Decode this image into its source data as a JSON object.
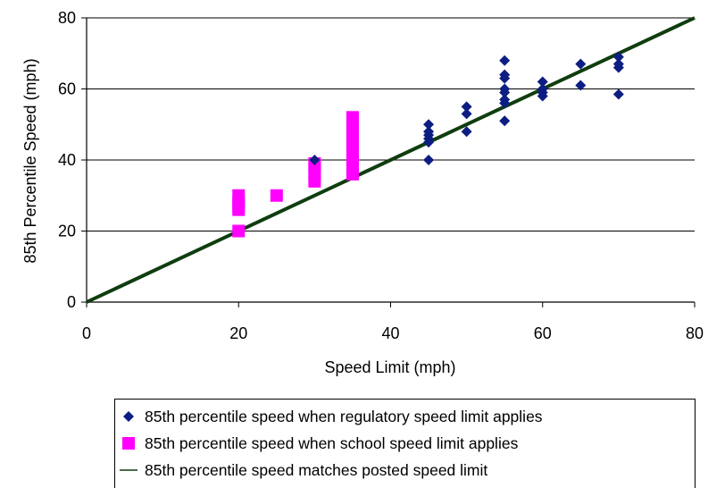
{
  "chart_data": {
    "type": "scatter",
    "xlabel": "Speed Limit (mph)",
    "ylabel": "85th Percentile Speed (mph)",
    "xlim": [
      0,
      80
    ],
    "ylim": [
      0,
      80
    ],
    "xticks": [
      0,
      20,
      40,
      60,
      80
    ],
    "yticks": [
      0,
      20,
      40,
      60,
      80
    ],
    "grid": "horizontal",
    "legend_position": "bottom",
    "series": [
      {
        "name": "85th percentile speed when regulatory speed limit applies",
        "marker": "diamond",
        "color": "#0d1e82",
        "points": [
          [
            30,
            40
          ],
          [
            45,
            40
          ],
          [
            45,
            45
          ],
          [
            45,
            46
          ],
          [
            45,
            47
          ],
          [
            45,
            48
          ],
          [
            45,
            50
          ],
          [
            50,
            48
          ],
          [
            50,
            53
          ],
          [
            50,
            55
          ],
          [
            55,
            51
          ],
          [
            55,
            56
          ],
          [
            55,
            57
          ],
          [
            55,
            59
          ],
          [
            55,
            60
          ],
          [
            55,
            63
          ],
          [
            55,
            64
          ],
          [
            55,
            68
          ],
          [
            60,
            58
          ],
          [
            60,
            59
          ],
          [
            60,
            60
          ],
          [
            60,
            62
          ],
          [
            65,
            61
          ],
          [
            65,
            67
          ],
          [
            70,
            58.5
          ],
          [
            70,
            66
          ],
          [
            70,
            67
          ],
          [
            70,
            69
          ]
        ]
      },
      {
        "name": "85th percentile speed when school speed limit applies",
        "marker": "square",
        "color": "#ff00ff",
        "points": [
          [
            20,
            20
          ],
          [
            20,
            26
          ],
          [
            20,
            27
          ],
          [
            20,
            28
          ],
          [
            20,
            30
          ],
          [
            25,
            30
          ],
          [
            30,
            34
          ],
          [
            30,
            36
          ],
          [
            30,
            38
          ],
          [
            30,
            39
          ],
          [
            35,
            36
          ],
          [
            35,
            38
          ],
          [
            35,
            40
          ],
          [
            35,
            42
          ],
          [
            35,
            44
          ],
          [
            35,
            46
          ],
          [
            35,
            48
          ],
          [
            35,
            50
          ],
          [
            35,
            52
          ]
        ]
      },
      {
        "name": "85th percentile speed matches posted speed limit",
        "marker": "line",
        "color": "#0f3d0f",
        "points": [
          [
            0,
            0
          ],
          [
            80,
            80
          ]
        ]
      }
    ]
  }
}
